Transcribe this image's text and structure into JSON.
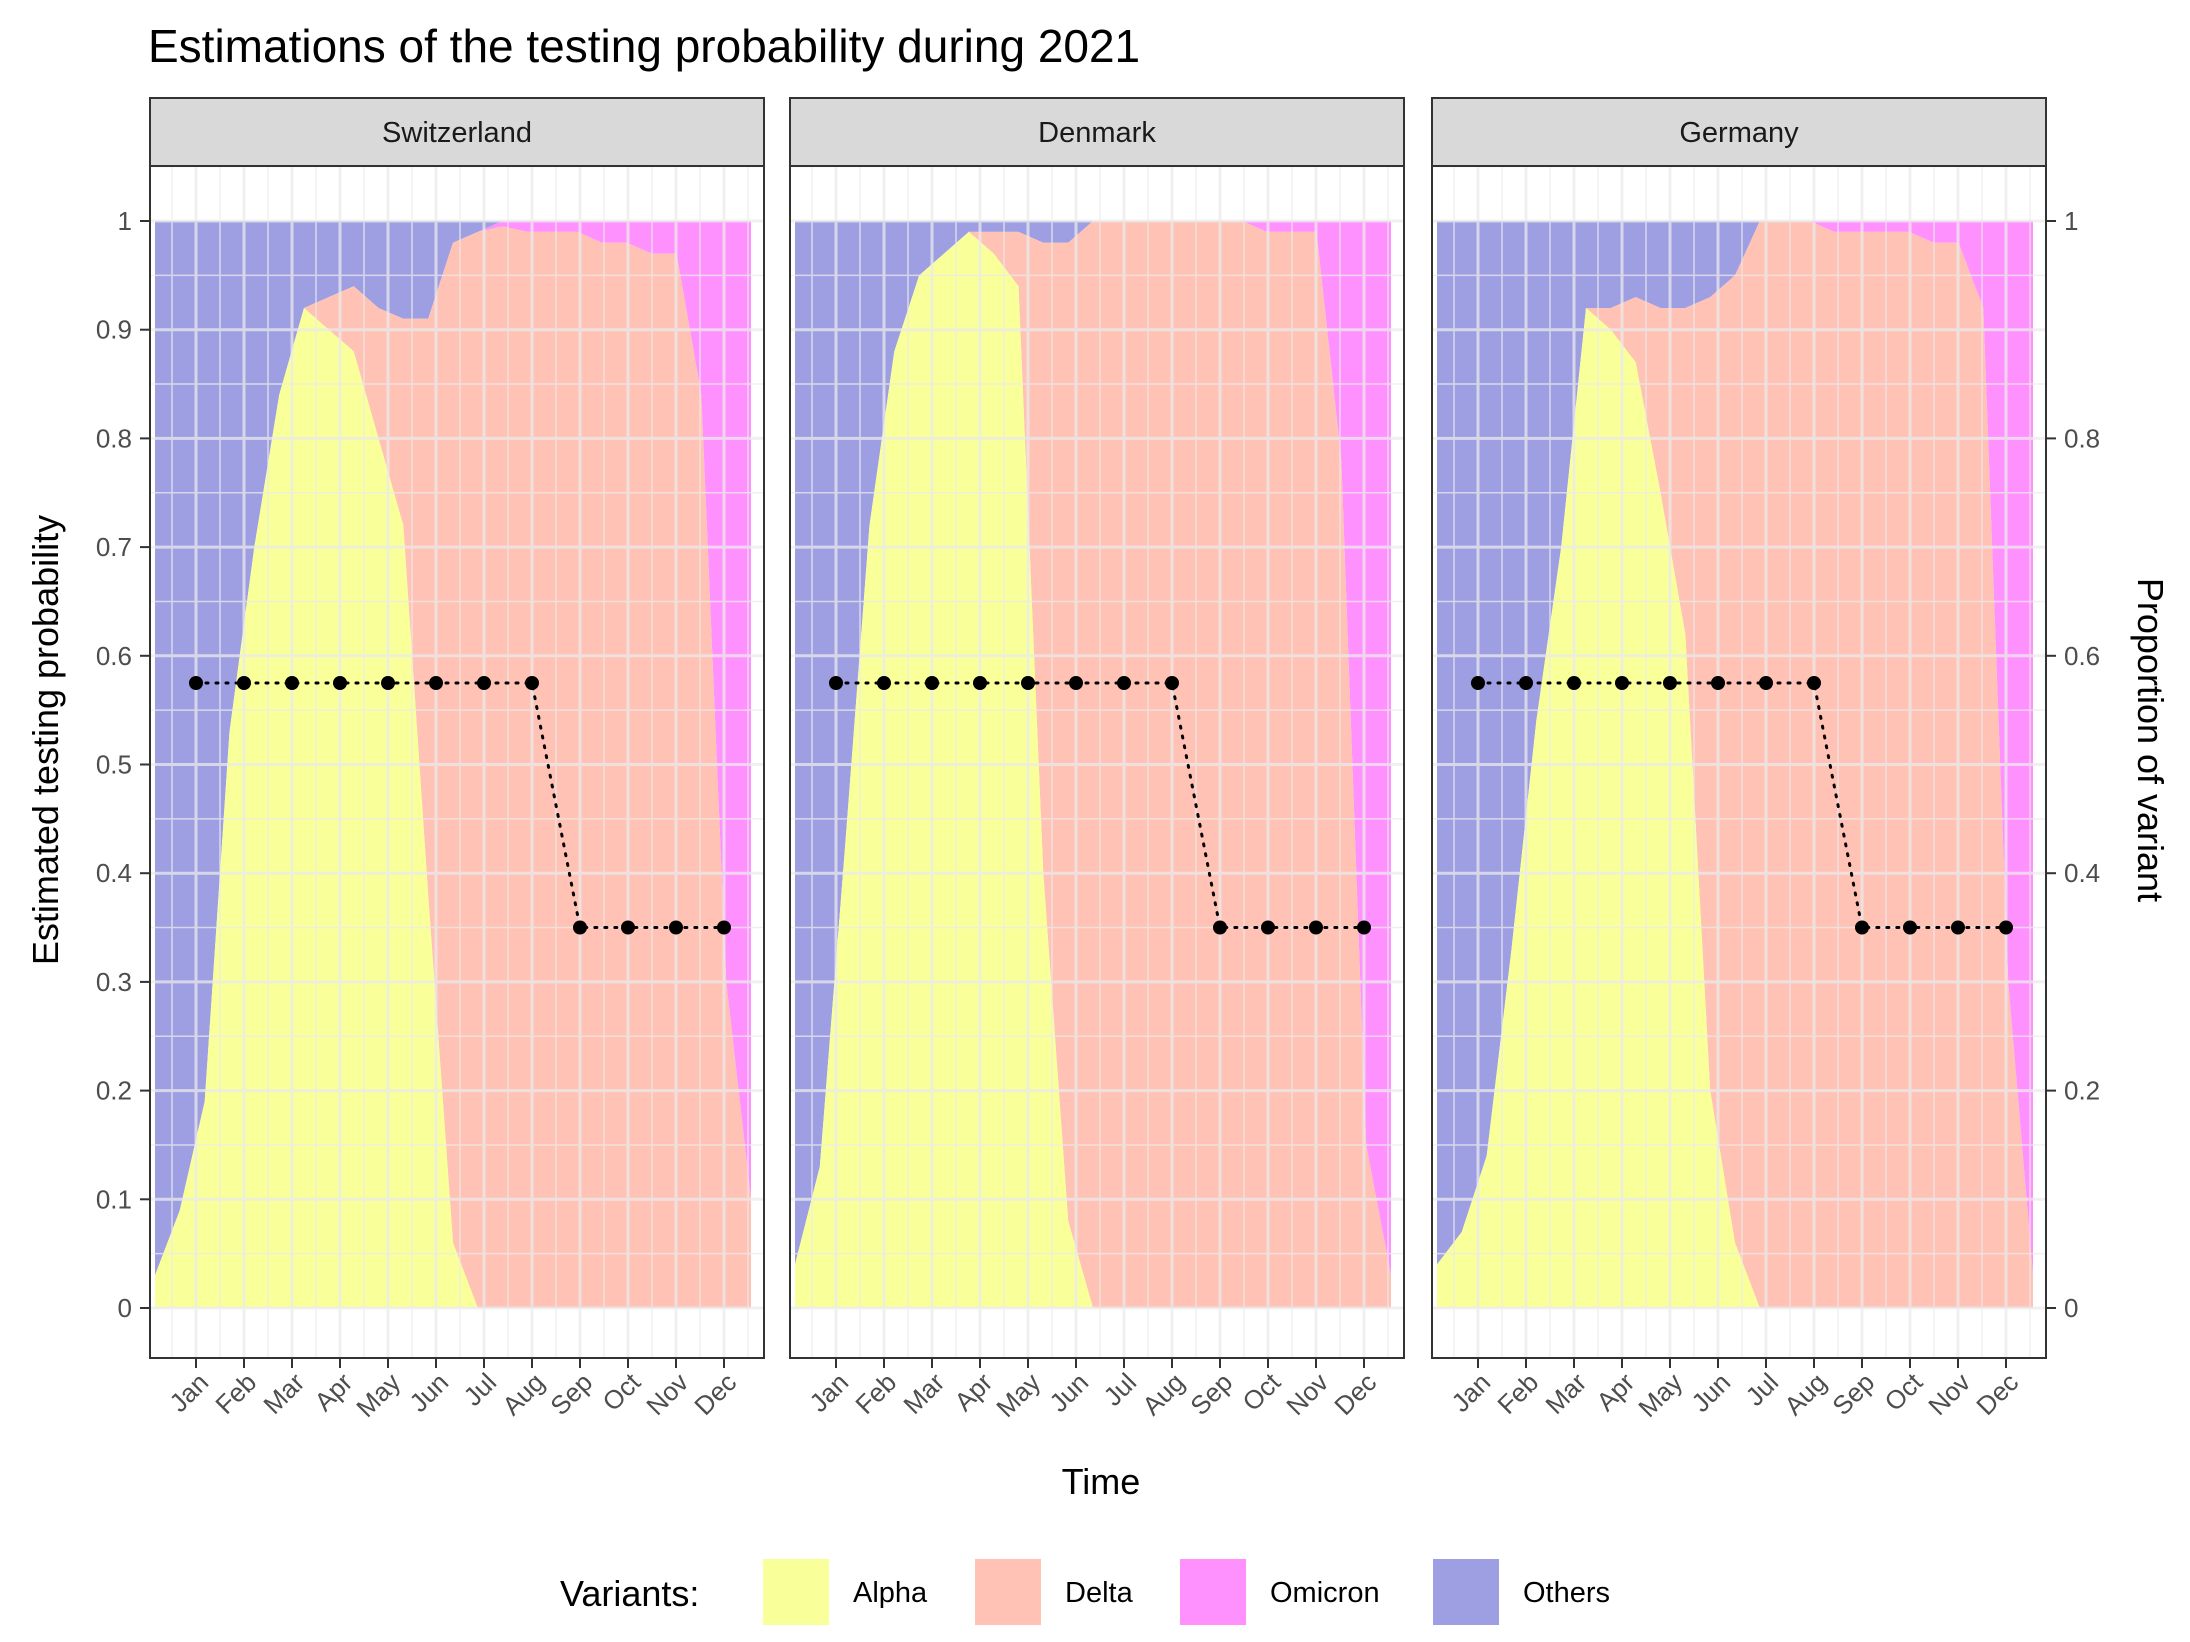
{
  "chart_data": {
    "type": "area",
    "title": "Estimations of the testing probability during 2021",
    "xlabel": "Time",
    "ylabel": "Estimated testing probability",
    "ylabel_right": "Proportion of variant",
    "x_ticks": [
      "Jan",
      "Feb",
      "Mar",
      "Apr",
      "May",
      "Jun",
      "Jul",
      "Aug",
      "Sep",
      "Oct",
      "Nov",
      "Dec"
    ],
    "y_ticks_left": [
      "0",
      "0.1",
      "0.2",
      "0.3",
      "0.4",
      "0.5",
      "0.6",
      "0.7",
      "0.8",
      "0.9",
      "1"
    ],
    "y_ticks_right": [
      "0",
      "0.2",
      "0.4",
      "0.6",
      "0.8",
      "1"
    ],
    "ylim": [
      0,
      1
    ],
    "legend": {
      "title": "Variants:",
      "position": "bottom",
      "items": [
        "Alpha",
        "Delta",
        "Omicron",
        "Others"
      ]
    },
    "colors": {
      "Alpha": "#F9FF99",
      "Delta": "#FFC2B5",
      "Omicron": "#FF91FF",
      "Others": "#9E9EE3"
    },
    "time_axis": [
      0,
      0.5,
      1,
      1.5,
      2,
      2.5,
      3,
      3.5,
      4,
      4.5,
      5,
      5.5,
      6,
      6.5,
      7,
      7.5,
      8,
      8.5,
      9,
      9.5,
      10,
      10.5,
      11,
      11.5,
      12
    ],
    "panels": [
      {
        "name": "Switzerland",
        "testing_probability": [
          0.575,
          0.575,
          0.575,
          0.575,
          0.575,
          0.575,
          0.575,
          0.575,
          0.35,
          0.35,
          0.35,
          0.35
        ],
        "alpha": [
          0.03,
          0.09,
          0.19,
          0.53,
          0.7,
          0.84,
          0.92,
          0.9,
          0.88,
          0.8,
          0.72,
          0.38,
          0.06,
          0,
          0,
          0,
          0,
          0,
          0,
          0,
          0,
          0,
          0,
          0,
          0
        ],
        "delta": [
          0,
          0,
          0,
          0,
          0,
          0,
          0,
          0.03,
          0.06,
          0.12,
          0.19,
          0.53,
          0.92,
          0.99,
          0.995,
          0.99,
          0.99,
          0.99,
          0.98,
          0.98,
          0.97,
          0.97,
          0.84,
          0.3,
          0.1
        ],
        "omicron": [
          0,
          0,
          0,
          0,
          0,
          0,
          0,
          0,
          0,
          0,
          0,
          0,
          0,
          0,
          0.005,
          0.01,
          0.01,
          0.01,
          0.02,
          0.02,
          0.03,
          0.03,
          0.16,
          0.7,
          0.9
        ]
      },
      {
        "name": "Denmark",
        "testing_probability": [
          0.575,
          0.575,
          0.575,
          0.575,
          0.575,
          0.575,
          0.575,
          0.575,
          0.35,
          0.35,
          0.35,
          0.35
        ],
        "alpha": [
          0.04,
          0.13,
          0.42,
          0.72,
          0.88,
          0.95,
          0.97,
          0.99,
          0.97,
          0.94,
          0.4,
          0.08,
          0,
          0,
          0,
          0,
          0,
          0,
          0,
          0,
          0,
          0,
          0,
          0,
          0
        ],
        "delta": [
          0,
          0,
          0,
          0,
          0,
          0,
          0,
          0,
          0.02,
          0.05,
          0.58,
          0.9,
          1.0,
          1.0,
          1.0,
          1.0,
          1.0,
          1.0,
          1.0,
          0.99,
          0.99,
          0.99,
          0.78,
          0.15,
          0.03
        ],
        "omicron": [
          0,
          0,
          0,
          0,
          0,
          0,
          0,
          0,
          0,
          0,
          0,
          0,
          0,
          0,
          0,
          0,
          0,
          0,
          0,
          0.01,
          0.01,
          0.01,
          0.22,
          0.85,
          0.97
        ]
      },
      {
        "name": "Germany",
        "testing_probability": [
          0.575,
          0.575,
          0.575,
          0.575,
          0.575,
          0.575,
          0.575,
          0.575,
          0.35,
          0.35,
          0.35,
          0.35
        ],
        "alpha": [
          0.04,
          0.07,
          0.14,
          0.33,
          0.54,
          0.7,
          0.92,
          0.9,
          0.87,
          0.75,
          0.62,
          0.2,
          0.06,
          0,
          0,
          0,
          0,
          0,
          0,
          0,
          0,
          0,
          0,
          0,
          0
        ],
        "delta": [
          0,
          0,
          0,
          0,
          0,
          0,
          0,
          0.02,
          0.06,
          0.17,
          0.3,
          0.73,
          0.89,
          1.0,
          1.0,
          1.0,
          0.99,
          0.99,
          0.99,
          0.99,
          0.98,
          0.98,
          0.92,
          0.3,
          0.03
        ],
        "omicron": [
          0,
          0,
          0,
          0,
          0,
          0,
          0,
          0,
          0,
          0,
          0,
          0,
          0,
          0,
          0,
          0,
          0.01,
          0.01,
          0.01,
          0.01,
          0.02,
          0.02,
          0.08,
          0.7,
          0.97
        ]
      }
    ]
  }
}
